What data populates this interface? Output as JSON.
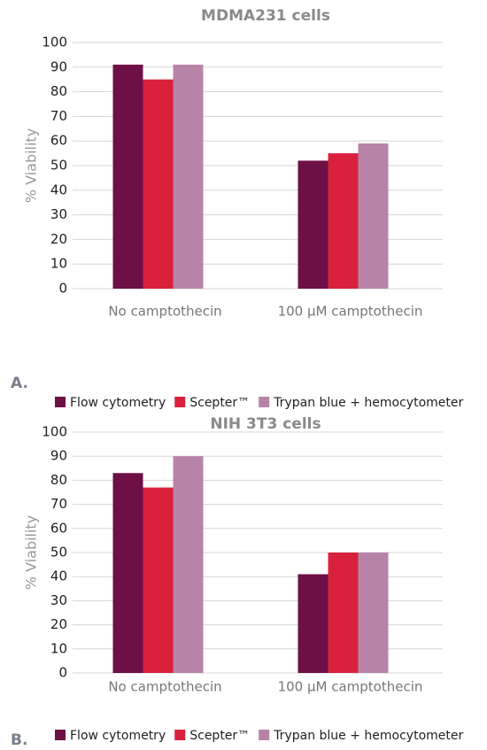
{
  "chart_data": [
    {
      "type": "bar",
      "title": "MDMA231 cells",
      "panel_label": "A.",
      "y_label": "% Viability",
      "categories": [
        "No camptothecin",
        "100 µM camptothecin"
      ],
      "series": [
        {
          "name": "Flow cytometry",
          "color": "#6d1045",
          "values": [
            91,
            52
          ]
        },
        {
          "name": "Scepter™",
          "color": "#d9213e",
          "values": [
            85,
            55
          ]
        },
        {
          "name": "Trypan blue + hemocytometer",
          "color": "#b784a7",
          "values": [
            91,
            59
          ]
        }
      ],
      "ylim": [
        0,
        100
      ],
      "yticks": [
        0,
        10,
        20,
        30,
        40,
        50,
        60,
        70,
        80,
        90,
        100
      ],
      "grid": true
    },
    {
      "type": "bar",
      "title": "NIH 3T3 cells",
      "panel_label": "B.",
      "y_label": "% Viability",
      "categories": [
        "No camptothecin",
        "100 µM camptothecin"
      ],
      "series": [
        {
          "name": "Flow cytometry",
          "color": "#6d1045",
          "values": [
            83,
            41
          ]
        },
        {
          "name": "Scepter™",
          "color": "#d9213e",
          "values": [
            77,
            50
          ]
        },
        {
          "name": "Trypan blue + hemocytometer",
          "color": "#b784a7",
          "values": [
            90,
            50
          ]
        }
      ],
      "ylim": [
        0,
        100
      ],
      "yticks": [
        0,
        10,
        20,
        30,
        40,
        50,
        60,
        70,
        80,
        90,
        100
      ],
      "grid": true
    }
  ]
}
